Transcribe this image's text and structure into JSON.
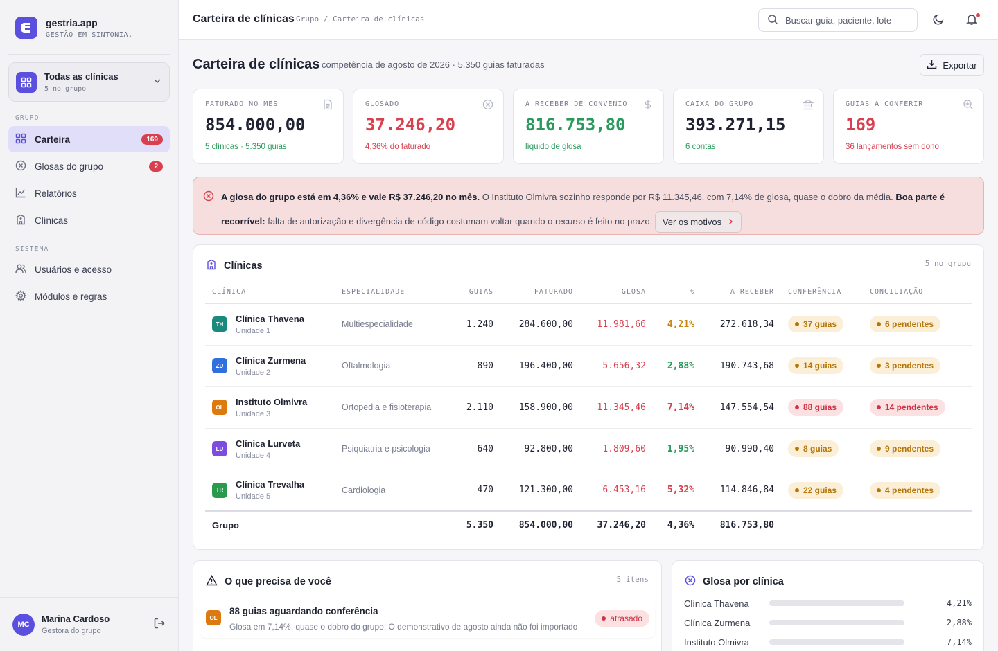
{
  "brand": {
    "name": "gestria.app",
    "tagline": "GESTÃO EM SINTONIA."
  },
  "clinic_selector": {
    "title": "Todas as clínicas",
    "subtitle": "5 no grupo"
  },
  "sidebar": {
    "section_group": "GRUPO",
    "section_system": "SISTEMA",
    "items": [
      {
        "label": "Carteira",
        "badge": "169",
        "icon": "grid-icon"
      },
      {
        "label": "Glosas do grupo",
        "badge": "2",
        "icon": "x-circle-icon"
      },
      {
        "label": "Relatórios",
        "icon": "chart-line-icon"
      },
      {
        "label": "Clínicas",
        "icon": "building-icon"
      },
      {
        "label": "Usuários e acesso",
        "icon": "users-icon"
      },
      {
        "label": "Módulos e regras",
        "icon": "gear-icon"
      }
    ]
  },
  "user": {
    "initials": "MC",
    "name": "Marina Cardoso",
    "role": "Gestora do grupo"
  },
  "topbar": {
    "title": "Carteira de clínicas",
    "breadcrumb": "Grupo / Carteira de clínicas",
    "search_placeholder": "Buscar guia, paciente, lote"
  },
  "page": {
    "title": "Carteira de clínicas",
    "subtitle": "competência de agosto de 2026 · 5.350 guias faturadas",
    "export_label": "Exportar"
  },
  "kpis": [
    {
      "label": "FATURADO NO MÊS",
      "value": "854.000,00",
      "foot": "5 clínicas · 5.350 guias",
      "icon": "document-icon"
    },
    {
      "label": "GLOSADO",
      "value": "37.246,20",
      "foot": "4,36% do faturado",
      "icon": "x-circle-icon"
    },
    {
      "label": "A RECEBER DE CONVÊNIO",
      "value": "816.753,80",
      "foot": "líquido de glosa",
      "icon": "dollar-icon"
    },
    {
      "label": "CAIXA DO GRUPO",
      "value": "393.271,15",
      "foot": "6 contas",
      "icon": "bank-icon"
    },
    {
      "label": "GUIAS A CONFERIR",
      "value": "169",
      "foot": "36 lançamentos sem dono",
      "icon": "search-plus-icon"
    }
  ],
  "alert": {
    "bold1": "A glosa do grupo está em 4,36% e vale R$ 37.246,20 no mês.",
    "text1": " O Instituto Olmivra sozinho responde por R$ 11.345,46, com 7,14% de glosa, quase o dobro da média. ",
    "bold2": "Boa parte é recorrível:",
    "text2": " falta de autorização e divergência de código costumam voltar quando o recurso é feito no prazo. ",
    "button": "Ver os motivos"
  },
  "clinics_card": {
    "title": "Clínicas",
    "meta": "5 no grupo",
    "columns": [
      "CLÍNICA",
      "ESPECIALIDADE",
      "GUIAS",
      "FATURADO",
      "GLOSA",
      "%",
      "A RECEBER",
      "CONFERÊNCIA",
      "CONCILIAÇÃO"
    ],
    "rows": [
      {
        "code": "TH",
        "color": "#1b8a7e",
        "name": "Clínica Thavena",
        "unit": "Unidade 1",
        "spec": "Multiespecialidade",
        "guias": "1.240",
        "faturado": "284.600,00",
        "glosa": "11.981,66",
        "pct": "4,21%",
        "pct_color": "#c98712",
        "receber": "272.618,34",
        "conf": "37 guias",
        "conf_level": "amber",
        "conc": "6 pendentes",
        "conc_level": "amber"
      },
      {
        "code": "ZU",
        "color": "#2f6fe0",
        "name": "Clínica Zurmena",
        "unit": "Unidade 2",
        "spec": "Oftalmologia",
        "guias": "890",
        "faturado": "196.400,00",
        "glosa": "5.656,32",
        "pct": "2,88%",
        "pct_color": "#2a9a5c",
        "receber": "190.743,68",
        "conf": "14 guias",
        "conf_level": "amber",
        "conc": "3 pendentes",
        "conc_level": "amber"
      },
      {
        "code": "OL",
        "color": "#dc7a10",
        "name": "Instituto Olmivra",
        "unit": "Unidade 3",
        "spec": "Ortopedia e fisioterapia",
        "guias": "2.110",
        "faturado": "158.900,00",
        "glosa": "11.345,46",
        "pct": "7,14%",
        "pct_color": "#d8404f",
        "receber": "147.554,54",
        "conf": "88 guias",
        "conf_level": "red",
        "conc": "14 pendentes",
        "conc_level": "red"
      },
      {
        "code": "LU",
        "color": "#7c4ddf",
        "name": "Clínica Lurveta",
        "unit": "Unidade 4",
        "spec": "Psiquiatria e psicologia",
        "guias": "640",
        "faturado": "92.800,00",
        "glosa": "1.809,60",
        "pct": "1,95%",
        "pct_color": "#2a9a5c",
        "receber": "90.990,40",
        "conf": "8 guias",
        "conf_level": "amber",
        "conc": "9 pendentes",
        "conc_level": "amber"
      },
      {
        "code": "TR",
        "color": "#2a9a4c",
        "name": "Clínica Trevalha",
        "unit": "Unidade 5",
        "spec": "Cardiologia",
        "guias": "470",
        "faturado": "121.300,00",
        "glosa": "6.453,16",
        "pct": "5,32%",
        "pct_color": "#d8404f",
        "receber": "114.846,84",
        "conf": "22 guias",
        "conf_level": "amber",
        "conc": "4 pendentes",
        "conc_level": "amber"
      }
    ],
    "total": {
      "label": "Grupo",
      "guias": "5.350",
      "faturado": "854.000,00",
      "glosa": "37.246,20",
      "pct": "4,36%",
      "receber": "816.753,80"
    }
  },
  "todo_card": {
    "title": "O que precisa de você",
    "meta": "5 itens",
    "items": [
      {
        "code": "OL",
        "title": "88 guias aguardando conferência",
        "desc": "Glosa em 7,14%, quase o dobro do grupo. O demonstrativo de agosto ainda não foi importado",
        "status": "atrasado"
      }
    ]
  },
  "glosa_card": {
    "title": "Glosa por clínica",
    "rows": [
      {
        "label": "Clínica Thavena",
        "value": "4,21%",
        "pct": 4.21
      },
      {
        "label": "Clínica Zurmena",
        "value": "2,88%",
        "pct": 2.88
      },
      {
        "label": "Instituto Olmivra",
        "value": "7,14%",
        "pct": 7.14
      }
    ]
  }
}
